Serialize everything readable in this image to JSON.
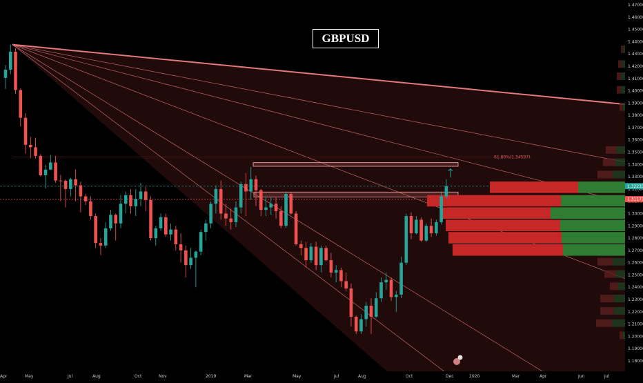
{
  "chart_data": {
    "type": "candlestick",
    "title": "GBPUSD",
    "colors": {
      "up": "#26a69a",
      "down": "#ef5350",
      "fan": "#f08080",
      "background": "#000000",
      "volume_up": "#2e7d32",
      "volume_down": "#c62828"
    },
    "y_ticks": [
      "1.47000",
      "1.46000",
      "1.45000",
      "1.44000",
      "1.43000",
      "1.42000",
      "1.41000",
      "1.40000",
      "1.39000",
      "1.38000",
      "1.37000",
      "1.36000",
      "1.35000",
      "1.34000",
      "1.33000",
      "1.32000",
      "1.31000",
      "1.30000",
      "1.29000",
      "1.28000",
      "1.27000",
      "1.26000",
      "1.25000",
      "1.24000",
      "1.23000",
      "1.22000",
      "1.21000",
      "1.20000",
      "1.19000",
      "1.18000"
    ],
    "ylim": [
      1.175,
      1.47
    ],
    "x_labels": [
      "Apr",
      "May",
      "Jul",
      "Aug",
      "Oct",
      "Nov",
      "2019",
      "Mar",
      "May",
      "Jul",
      "Aug",
      "Oct",
      "Dec",
      "2020",
      "Mar",
      "Apr",
      "Jun",
      "Jul"
    ],
    "current_price": "1.32233",
    "prior_close": "1.31171",
    "fib_label": "61.80%(1.34597)",
    "fib_level": 1.346,
    "resistance_zones": [
      {
        "from": "2019-02",
        "to": "2019-12",
        "low": 1.3385,
        "high": 1.3415
      },
      {
        "from": "2019-02",
        "to": "2019-12",
        "low": 1.3135,
        "high": 1.3175
      }
    ],
    "fan_origin": {
      "date": "2018-04",
      "price": 1.4376
    },
    "fan_end_prices": [
      1.389,
      1.342,
      1.309,
      1.247,
      1.13,
      1.06
    ],
    "volume_profile": [
      {
        "price": 1.3212,
        "buy": 68,
        "sell": 128
      },
      {
        "price": 1.3102,
        "buy": 93,
        "sell": 194
      },
      {
        "price": 1.3002,
        "buy": 108,
        "sell": 160
      },
      {
        "price": 1.2901,
        "buy": 94,
        "sell": 166
      },
      {
        "price": 1.2801,
        "buy": 92,
        "sell": 164
      },
      {
        "price": 1.2701,
        "buy": 90,
        "sell": 160
      }
    ],
    "candles": [
      {
        "date": "2018-04-06",
        "o": 1.4105,
        "h": 1.4209,
        "l": 1.4015,
        "c": 1.4172
      },
      {
        "date": "2018-04-13",
        "o": 1.4172,
        "h": 1.4376,
        "l": 1.4135,
        "c": 1.4318
      },
      {
        "date": "2018-04-20",
        "o": 1.4318,
        "h": 1.4346,
        "l": 1.3975,
        "c": 1.4006
      },
      {
        "date": "2018-04-27",
        "o": 1.4006,
        "h": 1.402,
        "l": 1.3711,
        "c": 1.378
      },
      {
        "date": "2018-05-04",
        "o": 1.378,
        "h": 1.3818,
        "l": 1.3488,
        "c": 1.356
      },
      {
        "date": "2018-05-11",
        "o": 1.356,
        "h": 1.3624,
        "l": 1.345,
        "c": 1.354
      },
      {
        "date": "2018-05-18",
        "o": 1.354,
        "h": 1.3618,
        "l": 1.345,
        "c": 1.347
      },
      {
        "date": "2018-05-25",
        "o": 1.347,
        "h": 1.3485,
        "l": 1.3304,
        "c": 1.3312
      },
      {
        "date": "2018-06-01",
        "o": 1.3312,
        "h": 1.3398,
        "l": 1.3204,
        "c": 1.3358
      },
      {
        "date": "2018-06-08",
        "o": 1.3358,
        "h": 1.3475,
        "l": 1.3355,
        "c": 1.3416
      },
      {
        "date": "2018-06-15",
        "o": 1.3416,
        "h": 1.347,
        "l": 1.3251,
        "c": 1.3269
      },
      {
        "date": "2018-06-22",
        "o": 1.3269,
        "h": 1.3315,
        "l": 1.3101,
        "c": 1.3267
      },
      {
        "date": "2018-06-29",
        "o": 1.3267,
        "h": 1.328,
        "l": 1.305,
        "c": 1.32
      },
      {
        "date": "2018-07-06",
        "o": 1.32,
        "h": 1.329,
        "l": 1.314,
        "c": 1.328
      },
      {
        "date": "2018-07-13",
        "o": 1.328,
        "h": 1.336,
        "l": 1.31,
        "c": 1.323
      },
      {
        "date": "2018-07-20",
        "o": 1.323,
        "h": 1.326,
        "l": 1.301,
        "c": 1.314
      },
      {
        "date": "2018-07-27",
        "o": 1.314,
        "h": 1.316,
        "l": 1.307,
        "c": 1.31
      },
      {
        "date": "2018-08-03",
        "o": 1.31,
        "h": 1.314,
        "l": 1.295,
        "c": 1.298
      },
      {
        "date": "2018-08-10",
        "o": 1.298,
        "h": 1.3,
        "l": 1.272,
        "c": 1.276
      },
      {
        "date": "2018-08-17",
        "o": 1.276,
        "h": 1.28,
        "l": 1.2662,
        "c": 1.274
      },
      {
        "date": "2018-08-24",
        "o": 1.274,
        "h": 1.293,
        "l": 1.272,
        "c": 1.288
      },
      {
        "date": "2018-08-31",
        "o": 1.288,
        "h": 1.303,
        "l": 1.286,
        "c": 1.299
      },
      {
        "date": "2018-09-07",
        "o": 1.299,
        "h": 1.3,
        "l": 1.278,
        "c": 1.292
      },
      {
        "date": "2018-09-14",
        "o": 1.292,
        "h": 1.315,
        "l": 1.288,
        "c": 1.308
      },
      {
        "date": "2018-09-21",
        "o": 1.308,
        "h": 1.318,
        "l": 1.3,
        "c": 1.315
      },
      {
        "date": "2018-09-28",
        "o": 1.315,
        "h": 1.32,
        "l": 1.3,
        "c": 1.306
      },
      {
        "date": "2018-10-05",
        "o": 1.306,
        "h": 1.32,
        "l": 1.298,
        "c": 1.312
      },
      {
        "date": "2018-10-12",
        "o": 1.312,
        "h": 1.325,
        "l": 1.306,
        "c": 1.318
      },
      {
        "date": "2018-10-19",
        "o": 1.318,
        "h": 1.322,
        "l": 1.302,
        "c": 1.311
      },
      {
        "date": "2018-10-26",
        "o": 1.311,
        "h": 1.314,
        "l": 1.278,
        "c": 1.28
      },
      {
        "date": "2018-11-02",
        "o": 1.28,
        "h": 1.29,
        "l": 1.274,
        "c": 1.288
      },
      {
        "date": "2018-11-09",
        "o": 1.288,
        "h": 1.3,
        "l": 1.286,
        "c": 1.297
      },
      {
        "date": "2018-11-16",
        "o": 1.297,
        "h": 1.3,
        "l": 1.281,
        "c": 1.283
      },
      {
        "date": "2018-11-23",
        "o": 1.283,
        "h": 1.292,
        "l": 1.278,
        "c": 1.287
      },
      {
        "date": "2018-11-30",
        "o": 1.287,
        "h": 1.29,
        "l": 1.27,
        "c": 1.275
      },
      {
        "date": "2018-12-07",
        "o": 1.275,
        "h": 1.284,
        "l": 1.26,
        "c": 1.27
      },
      {
        "date": "2018-12-14",
        "o": 1.27,
        "h": 1.274,
        "l": 1.248,
        "c": 1.258
      },
      {
        "date": "2018-12-21",
        "o": 1.258,
        "h": 1.272,
        "l": 1.255,
        "c": 1.264
      },
      {
        "date": "2018-12-28",
        "o": 1.264,
        "h": 1.27,
        "l": 1.24,
        "c": 1.269
      },
      {
        "date": "2019-01-04",
        "o": 1.269,
        "h": 1.287,
        "l": 1.266,
        "c": 1.285
      },
      {
        "date": "2019-01-11",
        "o": 1.285,
        "h": 1.295,
        "l": 1.278,
        "c": 1.292
      },
      {
        "date": "2019-01-18",
        "o": 1.292,
        "h": 1.31,
        "l": 1.288,
        "c": 1.308
      },
      {
        "date": "2019-01-25",
        "o": 1.308,
        "h": 1.323,
        "l": 1.3,
        "c": 1.32
      },
      {
        "date": "2019-02-01",
        "o": 1.32,
        "h": 1.327,
        "l": 1.295,
        "c": 1.3
      },
      {
        "date": "2019-02-08",
        "o": 1.3,
        "h": 1.308,
        "l": 1.29,
        "c": 1.296
      },
      {
        "date": "2019-02-15",
        "o": 1.296,
        "h": 1.304,
        "l": 1.287,
        "c": 1.293
      },
      {
        "date": "2019-02-22",
        "o": 1.293,
        "h": 1.31,
        "l": 1.289,
        "c": 1.305
      },
      {
        "date": "2019-03-01",
        "o": 1.305,
        "h": 1.326,
        "l": 1.3,
        "c": 1.324
      },
      {
        "date": "2019-03-08",
        "o": 1.324,
        "h": 1.333,
        "l": 1.298,
        "c": 1.318
      },
      {
        "date": "2019-03-15",
        "o": 1.318,
        "h": 1.338,
        "l": 1.311,
        "c": 1.328
      },
      {
        "date": "2019-03-22",
        "o": 1.328,
        "h": 1.331,
        "l": 1.306,
        "c": 1.319
      },
      {
        "date": "2019-03-29",
        "o": 1.319,
        "h": 1.32,
        "l": 1.298,
        "c": 1.303
      },
      {
        "date": "2019-04-05",
        "o": 1.303,
        "h": 1.314,
        "l": 1.298,
        "c": 1.305
      },
      {
        "date": "2019-04-12",
        "o": 1.305,
        "h": 1.313,
        "l": 1.299,
        "c": 1.308
      },
      {
        "date": "2019-04-19",
        "o": 1.308,
        "h": 1.313,
        "l": 1.296,
        "c": 1.302
      },
      {
        "date": "2019-04-26",
        "o": 1.302,
        "h": 1.306,
        "l": 1.288,
        "c": 1.29
      },
      {
        "date": "2019-05-03",
        "o": 1.29,
        "h": 1.318,
        "l": 1.288,
        "c": 1.316
      },
      {
        "date": "2019-05-10",
        "o": 1.316,
        "h": 1.317,
        "l": 1.299,
        "c": 1.3
      },
      {
        "date": "2019-05-17",
        "o": 1.3,
        "h": 1.302,
        "l": 1.274,
        "c": 1.275
      },
      {
        "date": "2019-05-24",
        "o": 1.275,
        "h": 1.278,
        "l": 1.266,
        "c": 1.272
      },
      {
        "date": "2019-05-31",
        "o": 1.272,
        "h": 1.277,
        "l": 1.256,
        "c": 1.262
      },
      {
        "date": "2019-06-07",
        "o": 1.262,
        "h": 1.276,
        "l": 1.26,
        "c": 1.273
      },
      {
        "date": "2019-06-14",
        "o": 1.273,
        "h": 1.277,
        "l": 1.254,
        "c": 1.258
      },
      {
        "date": "2019-06-21",
        "o": 1.258,
        "h": 1.274,
        "l": 1.252,
        "c": 1.272
      },
      {
        "date": "2019-06-28",
        "o": 1.272,
        "h": 1.274,
        "l": 1.261,
        "c": 1.262
      },
      {
        "date": "2019-07-05",
        "o": 1.262,
        "h": 1.268,
        "l": 1.248,
        "c": 1.252
      },
      {
        "date": "2019-07-12",
        "o": 1.252,
        "h": 1.258,
        "l": 1.244,
        "c": 1.254
      },
      {
        "date": "2019-07-19",
        "o": 1.254,
        "h": 1.256,
        "l": 1.24,
        "c": 1.245
      },
      {
        "date": "2019-07-26",
        "o": 1.245,
        "h": 1.252,
        "l": 1.237,
        "c": 1.239
      },
      {
        "date": "2019-08-02",
        "o": 1.239,
        "h": 1.243,
        "l": 1.208,
        "c": 1.216
      },
      {
        "date": "2019-08-09",
        "o": 1.216,
        "h": 1.217,
        "l": 1.202,
        "c": 1.204
      },
      {
        "date": "2019-08-16",
        "o": 1.204,
        "h": 1.218,
        "l": 1.202,
        "c": 1.214
      },
      {
        "date": "2019-08-23",
        "o": 1.214,
        "h": 1.228,
        "l": 1.208,
        "c": 1.225
      },
      {
        "date": "2019-08-30",
        "o": 1.225,
        "h": 1.231,
        "l": 1.202,
        "c": 1.216
      },
      {
        "date": "2019-09-06",
        "o": 1.216,
        "h": 1.236,
        "l": 1.215,
        "c": 1.231
      },
      {
        "date": "2019-09-13",
        "o": 1.231,
        "h": 1.248,
        "l": 1.228,
        "c": 1.244
      },
      {
        "date": "2019-09-20",
        "o": 1.244,
        "h": 1.252,
        "l": 1.238,
        "c": 1.246
      },
      {
        "date": "2019-09-27",
        "o": 1.246,
        "h": 1.248,
        "l": 1.229,
        "c": 1.232
      },
      {
        "date": "2019-10-04",
        "o": 1.232,
        "h": 1.237,
        "l": 1.22,
        "c": 1.234
      },
      {
        "date": "2019-10-11",
        "o": 1.234,
        "h": 1.265,
        "l": 1.231,
        "c": 1.26
      },
      {
        "date": "2019-10-18",
        "o": 1.26,
        "h": 1.3,
        "l": 1.258,
        "c": 1.298
      },
      {
        "date": "2019-10-25",
        "o": 1.298,
        "h": 1.301,
        "l": 1.279,
        "c": 1.284
      },
      {
        "date": "2019-11-01",
        "o": 1.284,
        "h": 1.298,
        "l": 1.283,
        "c": 1.295
      },
      {
        "date": "2019-11-08",
        "o": 1.295,
        "h": 1.297,
        "l": 1.277,
        "c": 1.278
      },
      {
        "date": "2019-11-15",
        "o": 1.278,
        "h": 1.292,
        "l": 1.277,
        "c": 1.29
      },
      {
        "date": "2019-11-22",
        "o": 1.29,
        "h": 1.296,
        "l": 1.281,
        "c": 1.284
      },
      {
        "date": "2019-11-29",
        "o": 1.284,
        "h": 1.295,
        "l": 1.282,
        "c": 1.293
      },
      {
        "date": "2019-12-06",
        "o": 1.293,
        "h": 1.318,
        "l": 1.291,
        "c": 1.314
      },
      {
        "date": "2019-12-13",
        "o": 1.314,
        "h": 1.328,
        "l": 1.312,
        "c": 1.3223
      }
    ]
  }
}
